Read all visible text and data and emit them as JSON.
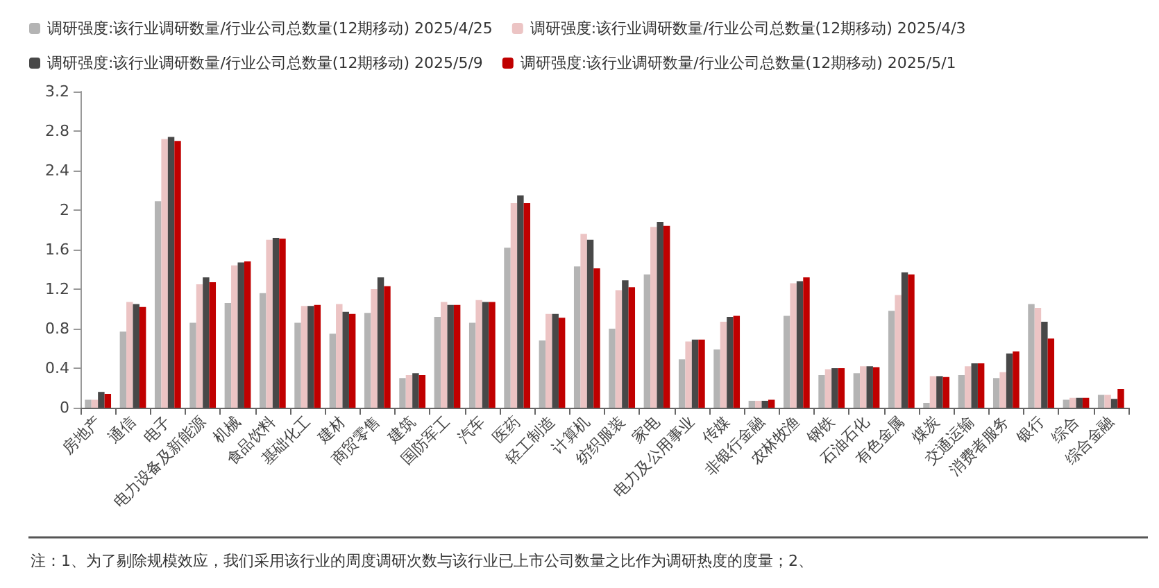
{
  "chart_data": {
    "type": "bar",
    "categories": [
      "房地产",
      "通信",
      "电子",
      "电力设备及新能源",
      "机械",
      "食品饮料",
      "基础化工",
      "建材",
      "商贸零售",
      "建筑",
      "国防军工",
      "汽车",
      "医药",
      "轻工制造",
      "计算机",
      "纺织服装",
      "家电",
      "电力及公用事业",
      "传媒",
      "非银行金融",
      "农林牧渔",
      "钢铁",
      "石油石化",
      "有色金属",
      "煤炭",
      "交通运输",
      "消费者服务",
      "银行",
      "综合",
      "综合金融"
    ],
    "series": [
      {
        "name": "调研强度:该行业调研数量/行业公司总数量(12期移动) 2025/4/25",
        "color": "#b4b4b4",
        "values": [
          0.08,
          0.77,
          2.09,
          0.86,
          1.06,
          1.16,
          0.86,
          0.75,
          0.96,
          0.3,
          0.92,
          0.86,
          1.62,
          0.68,
          1.43,
          0.8,
          1.35,
          0.49,
          0.59,
          0.07,
          0.93,
          0.33,
          0.35,
          0.98,
          0.05,
          0.33,
          0.3,
          1.05,
          0.08,
          0.13
        ]
      },
      {
        "name": "调研强度:该行业调研数量/行业公司总数量(12期移动) 2025/4/3",
        "color": "#ecc4c4",
        "values": [
          0.08,
          1.07,
          2.72,
          1.25,
          1.44,
          1.7,
          1.03,
          1.05,
          1.2,
          0.33,
          1.07,
          1.09,
          2.07,
          0.95,
          1.76,
          1.19,
          1.83,
          0.67,
          0.87,
          0.07,
          1.26,
          0.39,
          0.42,
          1.14,
          0.32,
          0.42,
          0.36,
          1.01,
          0.1,
          0.13
        ]
      },
      {
        "name": "调研强度:该行业调研数量/行业公司总数量(12期移动) 2025/5/9",
        "color": "#484848",
        "values": [
          0.16,
          1.05,
          2.74,
          1.32,
          1.47,
          1.72,
          1.03,
          0.97,
          1.32,
          0.35,
          1.04,
          1.07,
          2.15,
          0.95,
          1.7,
          1.29,
          1.88,
          0.69,
          0.92,
          0.07,
          1.28,
          0.4,
          0.42,
          1.37,
          0.32,
          0.45,
          0.55,
          0.87,
          0.1,
          0.09
        ]
      },
      {
        "name": "调研强度:该行业调研数量/行业公司总数量(12期移动) 2025/5/1",
        "color": "#c00000",
        "values": [
          0.14,
          1.02,
          2.7,
          1.27,
          1.48,
          1.71,
          1.04,
          0.95,
          1.23,
          0.33,
          1.04,
          1.07,
          2.07,
          0.91,
          1.41,
          1.22,
          1.84,
          0.69,
          0.93,
          0.08,
          1.32,
          0.4,
          0.41,
          1.35,
          0.31,
          0.45,
          0.57,
          0.7,
          0.1,
          0.19
        ]
      }
    ],
    "ylim": [
      0,
      3.2
    ],
    "yticks": [
      0,
      0.4,
      0.8,
      1.2,
      1.6,
      2,
      2.4,
      2.8,
      3.2
    ],
    "grid": false,
    "legend": "top",
    "annotations": [
      "注：1、为了剔除规模效应，我们采用该行业的周度调研次数与该行业已上市公司数量之比作为调研热度的度量；2、"
    ]
  }
}
